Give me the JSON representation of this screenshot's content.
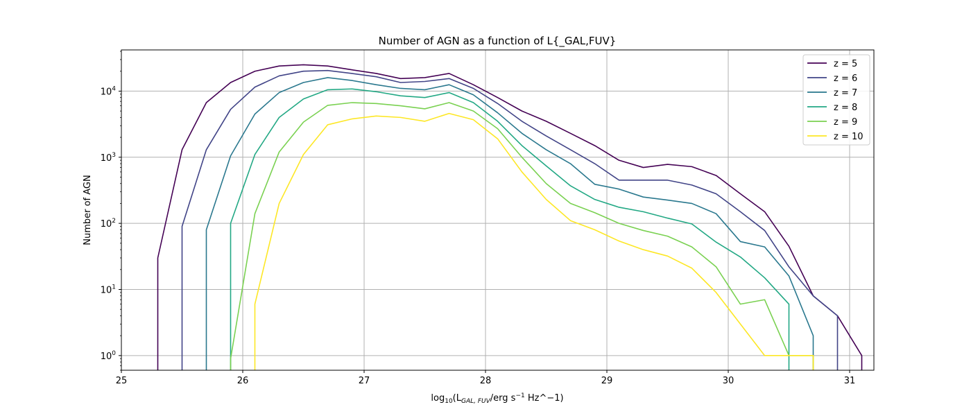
{
  "chart_data": {
    "type": "line",
    "title": "Number of AGN as a function of L{_GAL,FUV}",
    "xlabel": {
      "prefix": "log",
      "sub10": "10",
      "open": "(L",
      "sub_gal": "GAL, FUV",
      "unit": "/erg s",
      "sup": "−1",
      "suffix": " Hz^−1)"
    },
    "ylabel": "Number of AGN",
    "xlim": [
      25,
      31.2
    ],
    "ylim": [
      0.6,
      42000
    ],
    "yscale": "log",
    "grid": true,
    "legend_position": "top-right",
    "x_ticks": [
      "25",
      "26",
      "27",
      "28",
      "29",
      "30",
      "31"
    ],
    "y_ticks": [
      {
        "base": "10",
        "exp": "0"
      },
      {
        "base": "10",
        "exp": "1"
      },
      {
        "base": "10",
        "exp": "2"
      },
      {
        "base": "10",
        "exp": "3"
      },
      {
        "base": "10",
        "exp": "4"
      }
    ],
    "x": [
      25.3,
      25.5,
      25.7,
      25.9,
      26.1,
      26.3,
      26.5,
      26.7,
      26.9,
      27.1,
      27.3,
      27.5,
      27.7,
      27.9,
      28.1,
      28.3,
      28.5,
      28.7,
      28.9,
      29.1,
      29.3,
      29.5,
      29.7,
      29.9,
      30.1,
      30.3,
      30.5,
      30.7,
      30.9,
      31.1
    ],
    "series": [
      {
        "name": "z = 5",
        "color": "#440154",
        "values": [
          30,
          1300,
          6700,
          13500,
          20000,
          24000,
          25000,
          24000,
          21000,
          18500,
          15500,
          16000,
          18500,
          12500,
          8000,
          5000,
          3500,
          2300,
          1500,
          900,
          700,
          780,
          720,
          530,
          280,
          150,
          45,
          8,
          4,
          1
        ]
      },
      {
        "name": "z = 6",
        "color": "#414487",
        "values": [
          null,
          90,
          1300,
          5300,
          11500,
          17000,
          20000,
          20500,
          18500,
          16500,
          13500,
          14000,
          15500,
          11000,
          6500,
          3500,
          2100,
          1300,
          800,
          450,
          450,
          450,
          380,
          280,
          150,
          78,
          22,
          8,
          4,
          null
        ]
      },
      {
        "name": "z = 7",
        "color": "#2a788e",
        "values": [
          null,
          null,
          80,
          1050,
          4500,
          9500,
          13500,
          16000,
          14500,
          12500,
          11000,
          10500,
          12500,
          8800,
          4700,
          2300,
          1300,
          800,
          390,
          330,
          250,
          225,
          200,
          140,
          53,
          44,
          16,
          2,
          null,
          null
        ]
      },
      {
        "name": "z = 8",
        "color": "#22a884",
        "values": [
          null,
          null,
          null,
          100,
          1100,
          4000,
          7600,
          10500,
          10800,
          9800,
          8500,
          8000,
          9500,
          6700,
          3500,
          1500,
          740,
          370,
          230,
          175,
          150,
          120,
          98,
          52,
          31,
          15,
          6,
          null,
          null,
          null
        ]
      },
      {
        "name": "z = 9",
        "color": "#7ad151",
        "values": [
          null,
          null,
          null,
          0.9,
          140,
          1200,
          3400,
          6100,
          6700,
          6500,
          6000,
          5400,
          6700,
          5000,
          2700,
          1000,
          400,
          200,
          145,
          100,
          78,
          64,
          44,
          22,
          6,
          7,
          1,
          1,
          null,
          null
        ]
      },
      {
        "name": "z = 10",
        "color": "#fde725",
        "values": [
          null,
          null,
          null,
          null,
          6,
          200,
          1100,
          3100,
          3800,
          4200,
          4000,
          3500,
          4600,
          3700,
          1900,
          600,
          230,
          110,
          80,
          54,
          40,
          32,
          21,
          9,
          3,
          1,
          null,
          1,
          null,
          null
        ]
      }
    ]
  }
}
